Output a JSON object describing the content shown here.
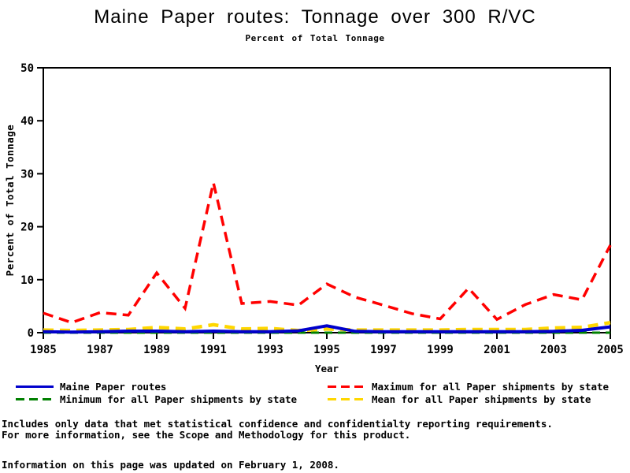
{
  "title": "Maine Paper routes: Tonnage over 300 R/VC",
  "subtitle": "Percent of Total Tonnage",
  "chart_data": {
    "type": "line",
    "title": "Maine Paper routes: Tonnage over 300 R/VC",
    "subtitle": "Percent of Total Tonnage",
    "xlabel": "Year",
    "ylabel": "Percent of Total Tonnage",
    "x": [
      1985,
      1986,
      1987,
      1988,
      1989,
      1990,
      1991,
      1992,
      1993,
      1994,
      1995,
      1996,
      1997,
      1998,
      1999,
      2000,
      2001,
      2002,
      2003,
      2004,
      2005
    ],
    "xticks": [
      1985,
      1987,
      1989,
      1991,
      1993,
      1995,
      1997,
      1999,
      2001,
      2003,
      2005
    ],
    "yticks": [
      0,
      10,
      20,
      30,
      40,
      50
    ],
    "ylim": [
      0,
      50
    ],
    "xlim": [
      1985,
      2005
    ],
    "grid": false,
    "legend_position": "bottom",
    "series": [
      {
        "key": "maine",
        "name": "Maine Paper routes",
        "color": "#0000CC",
        "line_style": "solid",
        "width": 4,
        "values": [
          0.2,
          0.1,
          0.2,
          0.3,
          0.3,
          0.2,
          0.3,
          0.2,
          0.2,
          0.35,
          1.3,
          0.25,
          0.2,
          0.2,
          0.2,
          0.2,
          0.2,
          0.2,
          0.25,
          0.45,
          1.1
        ]
      },
      {
        "key": "maximum",
        "name": "Maximum for all Paper shipments by state",
        "color": "#FF0000",
        "line_style": "dashed",
        "width": 3.5,
        "values": [
          3.7,
          1.9,
          3.8,
          3.3,
          11.3,
          4.6,
          28.3,
          5.5,
          5.9,
          5.2,
          9.2,
          6.7,
          5.2,
          3.6,
          2.6,
          8.4,
          2.5,
          5.3,
          7.2,
          6.2,
          16.5
        ]
      },
      {
        "key": "minimum",
        "name": "Minimum for all Paper shipments by state",
        "color": "#008000",
        "line_style": "dashed",
        "width": 3,
        "values": [
          0,
          0,
          0,
          0,
          0,
          0,
          0,
          0,
          0,
          0,
          0,
          0,
          0,
          0,
          0,
          0,
          0,
          0,
          0,
          0,
          0
        ]
      },
      {
        "key": "mean",
        "name": "Mean for all Paper shipments by state",
        "color": "#FFD700",
        "line_style": "dashed",
        "width": 4.5,
        "values": [
          0.5,
          0.4,
          0.5,
          0.6,
          1.0,
          0.7,
          1.5,
          0.7,
          0.8,
          0.4,
          0.7,
          0.5,
          0.5,
          0.5,
          0.5,
          0.6,
          0.6,
          0.6,
          0.9,
          1.0,
          1.9
        ]
      }
    ]
  },
  "legend": {
    "items": [
      {
        "key": "maine",
        "label": "Maine Paper routes",
        "color": "#0000CC",
        "style": "solid"
      },
      {
        "key": "maximum",
        "label": "Maximum for all Paper shipments by state",
        "color": "#FF0000",
        "style": "dashed"
      },
      {
        "key": "minimum",
        "label": "Minimum for all Paper shipments by state",
        "color": "#008000",
        "style": "dashed"
      },
      {
        "key": "mean",
        "label": "Mean for all Paper shipments by state",
        "color": "#FFD700",
        "style": "dashed"
      }
    ]
  },
  "footnotes": {
    "line1": "Includes only data that met statistical confidence and confidentialty reporting requirements.",
    "line2": "For more information, see the Scope and Methodology for this product.",
    "line3": "Information on this page was updated on February 1, 2008."
  }
}
